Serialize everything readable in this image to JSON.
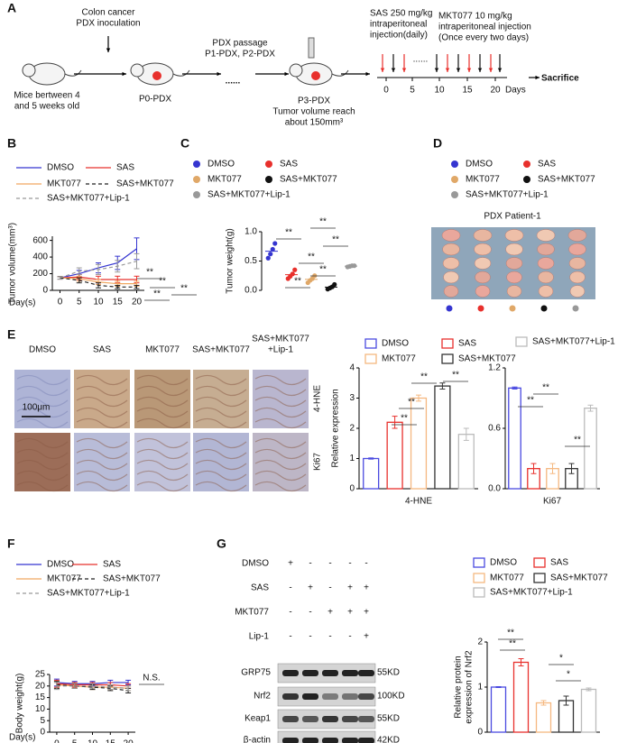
{
  "panels": {
    "A": {
      "letter": "A",
      "inoculation": [
        "Colon cancer",
        "PDX inoculation"
      ],
      "mice": [
        "Mice bertween 4",
        "and 5 weeks old"
      ],
      "p0": "P0-PDX",
      "passage": [
        "PDX passage",
        "P1-PDX, P2-PDX"
      ],
      "dots": "......",
      "p3": [
        "P3-PDX",
        "Tumor volume reach",
        "about 150mm³"
      ],
      "sas": [
        "SAS 250 mg/kg",
        "intraperitoneal",
        "injection(daily)"
      ],
      "mkt": [
        "MKT077 10 mg/kg",
        "intraperitoneal injection",
        "(Once every two days)"
      ],
      "timeline_ticks": [
        "0",
        "5",
        "10",
        "15",
        "20"
      ],
      "days": "Days",
      "gap": "......",
      "sacrifice": "Sacrifice"
    },
    "D": {
      "letter": "D",
      "title": "PDX Patient-1",
      "legend": [
        {
          "name": "DMSO",
          "color": "#3535d0"
        },
        {
          "name": "SAS",
          "color": "#e8302c"
        },
        {
          "name": "MKT077",
          "color": "#e0a868"
        },
        {
          "name": "SAS+MKT077",
          "color": "#111111"
        },
        {
          "name": "SAS+MKT077+Lip-1",
          "color": "#999999"
        }
      ]
    },
    "E": {
      "letter": "E",
      "columns": [
        [
          "DMSO"
        ],
        [
          "SAS"
        ],
        [
          "MKT077"
        ],
        [
          "SAS+MKT077"
        ],
        [
          "SAS+MKT077",
          "+Lip-1"
        ]
      ],
      "rows": [
        "4-HNE",
        "Ki67"
      ],
      "scale": "100μm"
    },
    "G": {
      "letter": "G",
      "treatments": [
        {
          "label": "DMSO",
          "marks": [
            "+",
            "-",
            "-",
            "-",
            "-"
          ]
        },
        {
          "label": "SAS",
          "marks": [
            "-",
            "+",
            "-",
            "+",
            "+"
          ]
        },
        {
          "label": "MKT077",
          "marks": [
            "-",
            "-",
            "+",
            "+",
            "+"
          ]
        },
        {
          "label": "Lip-1",
          "marks": [
            "-",
            "-",
            "-",
            "-",
            "+"
          ]
        }
      ],
      "proteins": [
        "GRP75",
        "Nrf2",
        "Keap1",
        "β-actin"
      ],
      "sizes": [
        "55KD",
        "100KD",
        "55KD",
        "42KD"
      ]
    }
  },
  "chart_data": [
    {
      "type": "line",
      "label": "B",
      "xlabel": "Day(s)",
      "ylabel": [
        "Tumor volume(mm³)"
      ],
      "x": [
        0,
        5,
        10,
        15,
        20
      ],
      "xlim": [
        -2,
        22
      ],
      "xticks": [
        0,
        5,
        10,
        15,
        20
      ],
      "ylim": [
        0,
        650
      ],
      "yticks": [
        0,
        200,
        400,
        600
      ],
      "series": [
        {
          "name": "DMSO",
          "color": "#3535d0",
          "dash": false,
          "values": [
            150,
            200,
            270,
            330,
            500
          ],
          "errors": [
            15,
            40,
            60,
            80,
            130
          ]
        },
        {
          "name": "SAS",
          "color": "#e8302c",
          "dash": false,
          "values": [
            150,
            160,
            130,
            130,
            130
          ],
          "errors": [
            15,
            30,
            40,
            40,
            40
          ]
        },
        {
          "name": "MKT077",
          "color": "#f0a860",
          "dash": false,
          "values": [
            150,
            140,
            100,
            80,
            80
          ],
          "errors": [
            15,
            30,
            30,
            30,
            30
          ]
        },
        {
          "name": "SAS+MKT077",
          "color": "#222222",
          "dash": true,
          "values": [
            150,
            120,
            60,
            40,
            40
          ],
          "errors": [
            15,
            30,
            30,
            20,
            20
          ]
        },
        {
          "name": "SAS+MKT077+Lip-1",
          "color": "#999999",
          "dash": true,
          "values": [
            150,
            230,
            250,
            290,
            350
          ],
          "errors": [
            15,
            40,
            60,
            70,
            90
          ]
        }
      ],
      "annotations": [
        "**",
        "**",
        "**",
        "**"
      ]
    },
    {
      "type": "dot",
      "label": "C",
      "ylabel": [
        "Tumor weight(g)"
      ],
      "ylim": [
        0,
        1.0
      ],
      "yticks": [
        {
          "value": 0,
          "label": "0.0"
        },
        0.5,
        {
          "value": 1.0,
          "label": "1.0"
        }
      ],
      "series": [
        {
          "name": "DMSO",
          "color": "#3535d0",
          "values": [
            0.55,
            0.62,
            0.7,
            0.8
          ]
        },
        {
          "name": "SAS",
          "color": "#e8302c",
          "values": [
            0.2,
            0.24,
            0.28,
            0.35
          ]
        },
        {
          "name": "MKT077",
          "color": "#e0a868",
          "values": [
            0.13,
            0.17,
            0.2,
            0.25
          ]
        },
        {
          "name": "SAS+MKT077",
          "color": "#111111",
          "values": [
            0.02,
            0.04,
            0.06,
            0.1
          ]
        },
        {
          "name": "SAS+MKT077+Lip-1",
          "color": "#999999",
          "values": [
            0.4,
            0.41,
            0.42,
            0.42
          ]
        }
      ],
      "annotations": [
        "**",
        "**",
        "**",
        "**",
        "**",
        "**"
      ]
    },
    {
      "type": "bar",
      "xlabel": "4-HNE",
      "ylabel": [
        "Relative expression"
      ],
      "ylim": [
        0,
        4
      ],
      "yticks": [
        0,
        1,
        2,
        3,
        4
      ],
      "series": [
        {
          "name": "DMSO",
          "color": "#4a4ae0",
          "values": [
            1.0
          ],
          "errors": [
            0.02
          ]
        },
        {
          "name": "SAS",
          "color": "#e8302c",
          "values": [
            2.2
          ],
          "errors": [
            0.2
          ]
        },
        {
          "name": "MKT077",
          "color": "#f5b880",
          "values": [
            3.0
          ],
          "errors": [
            0.1
          ]
        },
        {
          "name": "SAS+MKT077",
          "color": "#333333",
          "values": [
            3.4
          ],
          "errors": [
            0.1
          ]
        },
        {
          "name": "SAS+MKT077+Lip-1",
          "color": "#bbbbbb",
          "values": [
            1.8
          ],
          "errors": [
            0.2
          ]
        }
      ],
      "annotations": [
        "**",
        "**",
        "**",
        "**"
      ]
    },
    {
      "type": "bar",
      "xlabel": "Ki67",
      "ylim": [
        0,
        1.2
      ],
      "yticks": [
        {
          "value": 0,
          "label": "0.0"
        },
        0.6,
        1.2
      ],
      "series": [
        {
          "color": "#4a4ae0",
          "values": [
            1.0
          ],
          "errors": [
            0.01
          ]
        },
        {
          "color": "#e8302c",
          "values": [
            0.2
          ],
          "errors": [
            0.05
          ]
        },
        {
          "color": "#f5b880",
          "values": [
            0.2
          ],
          "errors": [
            0.05
          ]
        },
        {
          "color": "#333333",
          "values": [
            0.2
          ],
          "errors": [
            0.05
          ]
        },
        {
          "color": "#bbbbbb",
          "values": [
            0.8
          ],
          "errors": [
            0.03
          ]
        }
      ],
      "annotations": [
        "**",
        "**",
        "**"
      ]
    },
    {
      "type": "line",
      "label": "F",
      "xlabel": "Day(s)",
      "ylabel": [
        "Body weight(g)"
      ],
      "x": [
        0,
        5,
        10,
        15,
        20
      ],
      "xlim": [
        -2,
        22
      ],
      "xticks": [
        0,
        5,
        10,
        15,
        20
      ],
      "ylim": [
        0,
        25
      ],
      "yticks": [
        0,
        5,
        10,
        15,
        20,
        25
      ],
      "series": [
        {
          "name": "DMSO",
          "color": "#3535d0",
          "dash": false,
          "values": [
            21.5,
            21,
            21,
            21.5,
            21.5
          ],
          "errors": [
            1.5,
            1,
            1,
            1,
            1
          ]
        },
        {
          "name": "SAS",
          "color": "#e8302c",
          "dash": false,
          "values": [
            21,
            20.5,
            20.5,
            20.5,
            20
          ],
          "errors": [
            1.5,
            1,
            1,
            1,
            1
          ]
        },
        {
          "name": "MKT077",
          "color": "#f0a860",
          "dash": false,
          "values": [
            20.5,
            20,
            19.5,
            19.5,
            19
          ],
          "errors": [
            1.5,
            1,
            1,
            1,
            1
          ]
        },
        {
          "name": "SAS+MKT077",
          "color": "#222222",
          "dash": true,
          "values": [
            20.5,
            20,
            19.5,
            19,
            18
          ],
          "errors": [
            1.5,
            1,
            1,
            1,
            1
          ]
        },
        {
          "name": "SAS+MKT077+Lip-1",
          "color": "#999999",
          "dash": true,
          "values": [
            20,
            20,
            20,
            19.5,
            19
          ],
          "errors": [
            1.5,
            1,
            1,
            1,
            1
          ]
        }
      ],
      "annotations": [
        "N.S."
      ]
    },
    {
      "type": "bar",
      "ylabel": [
        "Relative protein",
        "expression of Nrf2"
      ],
      "ylim": [
        0,
        2
      ],
      "yticks": [
        0,
        1,
        2
      ],
      "series": [
        {
          "name": "DMSO",
          "color": "#4a4ae0",
          "values": [
            1.0
          ],
          "errors": [
            0.01
          ]
        },
        {
          "name": "SAS",
          "color": "#e8302c",
          "values": [
            1.55
          ],
          "errors": [
            0.08
          ]
        },
        {
          "name": "MKT077",
          "color": "#f5b880",
          "values": [
            0.65
          ],
          "errors": [
            0.05
          ]
        },
        {
          "name": "SAS+MKT077",
          "color": "#333333",
          "values": [
            0.7
          ],
          "errors": [
            0.1
          ]
        },
        {
          "name": "SAS+MKT077+Lip-1",
          "color": "#bbbbbb",
          "values": [
            0.95
          ],
          "errors": [
            0.03
          ]
        }
      ],
      "annotations": [
        "**",
        "**",
        "*",
        "*"
      ]
    }
  ]
}
